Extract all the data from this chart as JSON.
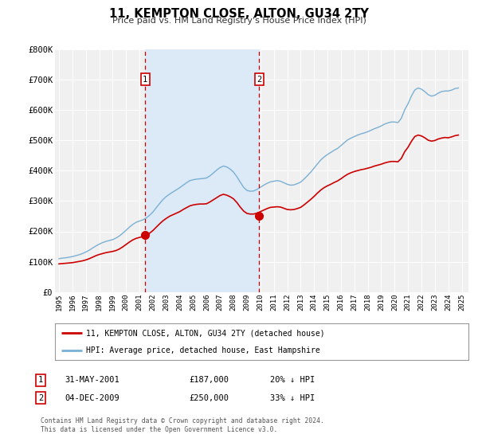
{
  "title": "11, KEMPTON CLOSE, ALTON, GU34 2TY",
  "subtitle": "Price paid vs. HM Land Registry's House Price Index (HPI)",
  "background_color": "#ffffff",
  "plot_bg_color": "#f0f0f0",
  "ylim": [
    0,
    800000
  ],
  "yticks": [
    0,
    100000,
    200000,
    300000,
    400000,
    500000,
    600000,
    700000,
    800000
  ],
  "ytick_labels": [
    "£0",
    "£100K",
    "£200K",
    "£300K",
    "£400K",
    "£500K",
    "£600K",
    "£700K",
    "£800K"
  ],
  "xlim_start": 1994.7,
  "xlim_end": 2025.5,
  "xtick_years": [
    1995,
    1996,
    1997,
    1998,
    1999,
    2000,
    2001,
    2002,
    2003,
    2004,
    2005,
    2006,
    2007,
    2008,
    2009,
    2010,
    2011,
    2012,
    2013,
    2014,
    2015,
    2016,
    2017,
    2018,
    2019,
    2020,
    2021,
    2022,
    2023,
    2024,
    2025
  ],
  "purchase1_x": 2001.42,
  "purchase1_y": 187000,
  "purchase1_label": "1",
  "purchase1_date": "31-MAY-2001",
  "purchase1_price": "£187,000",
  "purchase1_hpi": "20% ↓ HPI",
  "purchase2_x": 2009.92,
  "purchase2_y": 250000,
  "purchase2_label": "2",
  "purchase2_date": "04-DEC-2009",
  "purchase2_price": "£250,000",
  "purchase2_hpi": "33% ↓ HPI",
  "shade_color": "#dce9f7",
  "vline_color": "#cc0000",
  "hpi_line_color": "#7ab0d4",
  "price_line_color": "#cc0000",
  "legend_label_price": "11, KEMPTON CLOSE, ALTON, GU34 2TY (detached house)",
  "legend_label_hpi": "HPI: Average price, detached house, East Hampshire",
  "footer1": "Contains HM Land Registry data © Crown copyright and database right 2024.",
  "footer2": "This data is licensed under the Open Government Licence v3.0.",
  "hpi_data_x": [
    1995.0,
    1995.25,
    1995.5,
    1995.75,
    1996.0,
    1996.25,
    1996.5,
    1996.75,
    1997.0,
    1997.25,
    1997.5,
    1997.75,
    1998.0,
    1998.25,
    1998.5,
    1998.75,
    1999.0,
    1999.25,
    1999.5,
    1999.75,
    2000.0,
    2000.25,
    2000.5,
    2000.75,
    2001.0,
    2001.25,
    2001.5,
    2001.75,
    2002.0,
    2002.25,
    2002.5,
    2002.75,
    2003.0,
    2003.25,
    2003.5,
    2003.75,
    2004.0,
    2004.25,
    2004.5,
    2004.75,
    2005.0,
    2005.25,
    2005.5,
    2005.75,
    2006.0,
    2006.25,
    2006.5,
    2006.75,
    2007.0,
    2007.25,
    2007.5,
    2007.75,
    2008.0,
    2008.25,
    2008.5,
    2008.75,
    2009.0,
    2009.25,
    2009.5,
    2009.75,
    2010.0,
    2010.25,
    2010.5,
    2010.75,
    2011.0,
    2011.25,
    2011.5,
    2011.75,
    2012.0,
    2012.25,
    2012.5,
    2012.75,
    2013.0,
    2013.25,
    2013.5,
    2013.75,
    2014.0,
    2014.25,
    2014.5,
    2014.75,
    2015.0,
    2015.25,
    2015.5,
    2015.75,
    2016.0,
    2016.25,
    2016.5,
    2016.75,
    2017.0,
    2017.25,
    2017.5,
    2017.75,
    2018.0,
    2018.25,
    2018.5,
    2018.75,
    2019.0,
    2019.25,
    2019.5,
    2019.75,
    2020.0,
    2020.25,
    2020.5,
    2020.75,
    2021.0,
    2021.25,
    2021.5,
    2021.75,
    2022.0,
    2022.25,
    2022.5,
    2022.75,
    2023.0,
    2023.25,
    2023.5,
    2023.75,
    2024.0,
    2024.25,
    2024.5,
    2024.75
  ],
  "hpi_data_y": [
    110000,
    112000,
    113000,
    115000,
    117000,
    120000,
    123000,
    127000,
    132000,
    138000,
    145000,
    152000,
    158000,
    163000,
    167000,
    170000,
    173000,
    178000,
    185000,
    194000,
    204000,
    214000,
    223000,
    230000,
    234000,
    238000,
    244000,
    253000,
    264000,
    278000,
    292000,
    305000,
    315000,
    323000,
    330000,
    337000,
    344000,
    352000,
    360000,
    367000,
    370000,
    372000,
    373000,
    374000,
    376000,
    383000,
    392000,
    402000,
    410000,
    415000,
    412000,
    405000,
    395000,
    380000,
    362000,
    345000,
    335000,
    332000,
    333000,
    338000,
    345000,
    352000,
    358000,
    363000,
    365000,
    367000,
    365000,
    360000,
    355000,
    352000,
    353000,
    357000,
    362000,
    372000,
    383000,
    395000,
    408000,
    422000,
    435000,
    445000,
    453000,
    460000,
    467000,
    473000,
    482000,
    492000,
    501000,
    507000,
    512000,
    517000,
    521000,
    524000,
    528000,
    533000,
    538000,
    542000,
    547000,
    553000,
    557000,
    560000,
    560000,
    558000,
    572000,
    600000,
    620000,
    645000,
    665000,
    672000,
    668000,
    660000,
    650000,
    645000,
    648000,
    655000,
    660000,
    662000,
    662000,
    665000,
    670000,
    672000
  ],
  "price_data_x": [
    1995.0,
    1995.25,
    1995.5,
    1995.75,
    1996.0,
    1996.25,
    1996.5,
    1996.75,
    1997.0,
    1997.25,
    1997.5,
    1997.75,
    1998.0,
    1998.25,
    1998.5,
    1998.75,
    1999.0,
    1999.25,
    1999.5,
    1999.75,
    2000.0,
    2000.25,
    2000.5,
    2000.75,
    2001.0,
    2001.25,
    2001.5,
    2001.75,
    2002.0,
    2002.25,
    2002.5,
    2002.75,
    2003.0,
    2003.25,
    2003.5,
    2003.75,
    2004.0,
    2004.25,
    2004.5,
    2004.75,
    2005.0,
    2005.25,
    2005.5,
    2005.75,
    2006.0,
    2006.25,
    2006.5,
    2006.75,
    2007.0,
    2007.25,
    2007.5,
    2007.75,
    2008.0,
    2008.25,
    2008.5,
    2008.75,
    2009.0,
    2009.25,
    2009.5,
    2009.75,
    2010.0,
    2010.25,
    2010.5,
    2010.75,
    2011.0,
    2011.25,
    2011.5,
    2011.75,
    2012.0,
    2012.25,
    2012.5,
    2012.75,
    2013.0,
    2013.25,
    2013.5,
    2013.75,
    2014.0,
    2014.25,
    2014.5,
    2014.75,
    2015.0,
    2015.25,
    2015.5,
    2015.75,
    2016.0,
    2016.25,
    2016.5,
    2016.75,
    2017.0,
    2017.25,
    2017.5,
    2017.75,
    2018.0,
    2018.25,
    2018.5,
    2018.75,
    2019.0,
    2019.25,
    2019.5,
    2019.75,
    2020.0,
    2020.25,
    2020.5,
    2020.75,
    2021.0,
    2021.25,
    2021.5,
    2021.75,
    2022.0,
    2022.25,
    2022.5,
    2022.75,
    2023.0,
    2023.25,
    2023.5,
    2023.75,
    2024.0,
    2024.25,
    2024.5,
    2024.75
  ],
  "price_data_y": [
    93000,
    94000,
    95000,
    96000,
    97000,
    99000,
    101000,
    103000,
    106000,
    110000,
    115000,
    120000,
    124000,
    127000,
    130000,
    132000,
    134000,
    137000,
    142000,
    149000,
    157000,
    165000,
    172000,
    177000,
    180000,
    183000,
    187000,
    194000,
    203000,
    214000,
    225000,
    235000,
    243000,
    250000,
    255000,
    260000,
    265000,
    272000,
    278000,
    284000,
    287000,
    289000,
    290000,
    290000,
    291000,
    297000,
    304000,
    311000,
    318000,
    322000,
    319000,
    314000,
    307000,
    295000,
    280000,
    267000,
    259000,
    257000,
    257000,
    260000,
    265000,
    270000,
    275000,
    279000,
    280000,
    281000,
    280000,
    276000,
    272000,
    271000,
    272000,
    275000,
    279000,
    287000,
    296000,
    305000,
    315000,
    326000,
    336000,
    344000,
    350000,
    355000,
    361000,
    366000,
    373000,
    381000,
    388000,
    393000,
    397000,
    400000,
    403000,
    405000,
    408000,
    411000,
    415000,
    418000,
    421000,
    425000,
    428000,
    430000,
    430000,
    429000,
    440000,
    462000,
    477000,
    496000,
    512000,
    517000,
    514000,
    508000,
    500000,
    497000,
    499000,
    504000,
    507000,
    509000,
    508000,
    511000,
    515000,
    517000
  ]
}
